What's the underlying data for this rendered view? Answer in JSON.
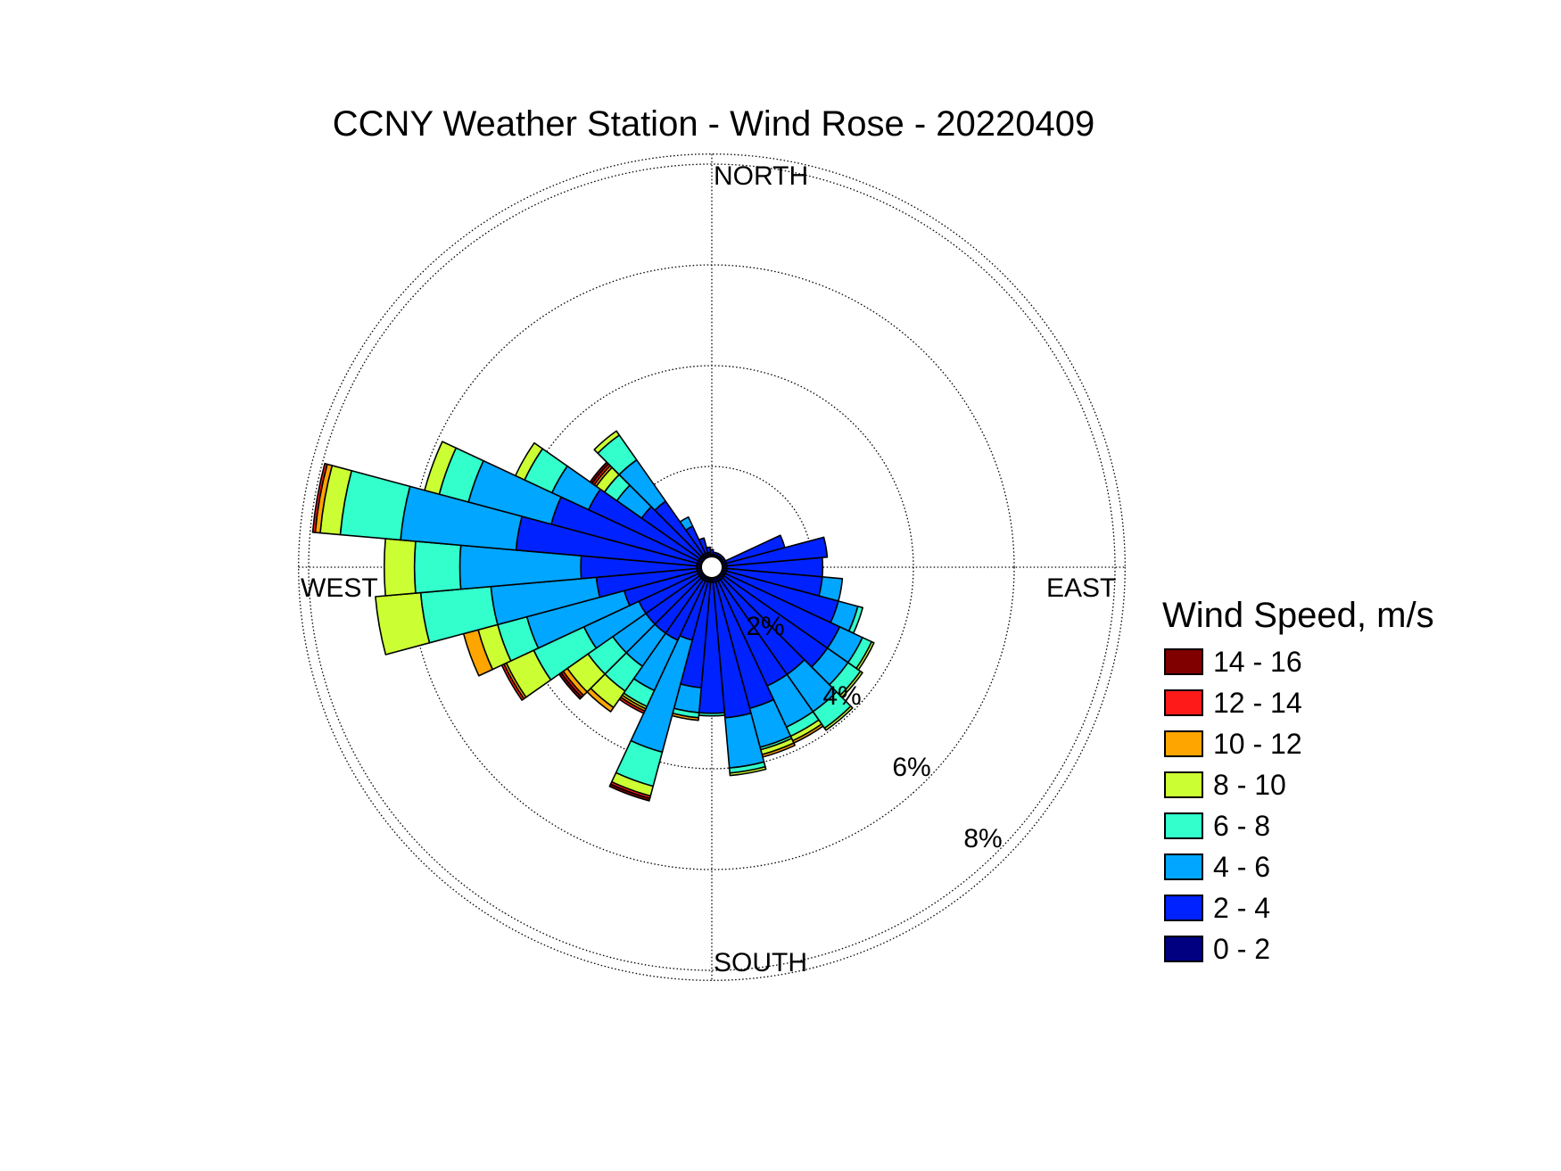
{
  "chart_data": {
    "type": "wind_rose",
    "title": "CCNY Weather Station - Wind Rose - 20220409",
    "directions": {
      "north": "NORTH",
      "east": "EAST",
      "south": "SOUTH",
      "west": "WEST"
    },
    "radial_axis": {
      "ticks": [
        2,
        4,
        6,
        8
      ],
      "tick_labels": [
        "2%",
        "4%",
        "6%",
        "8%"
      ],
      "max": 8.2,
      "grid": true
    },
    "legend": {
      "title": "Wind Speed, m/s",
      "placement": "right",
      "bins": [
        {
          "label": "14 - 16",
          "color": "#800000"
        },
        {
          "label": "12 - 14",
          "color": "#ff1a1a"
        },
        {
          "label": "10 - 12",
          "color": "#ffa500"
        },
        {
          "label": "8 - 10",
          "color": "#ccff33"
        },
        {
          "label": "6 - 8",
          "color": "#33ffcc"
        },
        {
          "label": "4 - 6",
          "color": "#00a6ff"
        },
        {
          "label": "2 - 4",
          "color": "#0022ff"
        },
        {
          "label": "0 - 2",
          "color": "#000080"
        }
      ]
    },
    "sector_width_deg": 10,
    "series": [
      {
        "direction_deg": 0,
        "cumulative_percent": [
          0.25,
          0.35,
          0.35,
          0.35,
          0.35,
          0.35,
          0.35,
          0.35
        ]
      },
      {
        "direction_deg": 10,
        "cumulative_percent": [
          0.25,
          0.3,
          0.3,
          0.3,
          0.3,
          0.3,
          0.3,
          0.3
        ]
      },
      {
        "direction_deg": 20,
        "cumulative_percent": [
          0.25,
          0.3,
          0.3,
          0.3,
          0.3,
          0.3,
          0.3,
          0.3
        ]
      },
      {
        "direction_deg": 30,
        "cumulative_percent": [
          0.25,
          0.3,
          0.3,
          0.3,
          0.3,
          0.3,
          0.3,
          0.3
        ]
      },
      {
        "direction_deg": 40,
        "cumulative_percent": [
          0.25,
          0.3,
          0.3,
          0.3,
          0.3,
          0.3,
          0.3,
          0.3
        ]
      },
      {
        "direction_deg": 50,
        "cumulative_percent": [
          0.25,
          0.3,
          0.3,
          0.3,
          0.3,
          0.3,
          0.3,
          0.3
        ]
      },
      {
        "direction_deg": 60,
        "cumulative_percent": [
          0.25,
          0.3,
          0.3,
          0.3,
          0.3,
          0.3,
          0.3,
          0.3
        ]
      },
      {
        "direction_deg": 70,
        "cumulative_percent": [
          0.3,
          1.5,
          1.5,
          1.5,
          1.5,
          1.5,
          1.5,
          1.5
        ]
      },
      {
        "direction_deg": 80,
        "cumulative_percent": [
          0.3,
          2.3,
          2.3,
          2.3,
          2.3,
          2.3,
          2.3,
          2.3
        ]
      },
      {
        "direction_deg": 90,
        "cumulative_percent": [
          0.3,
          2.2,
          2.2,
          2.2,
          2.2,
          2.2,
          2.2,
          2.2
        ]
      },
      {
        "direction_deg": 100,
        "cumulative_percent": [
          0.3,
          2.2,
          2.6,
          2.6,
          2.6,
          2.6,
          2.6,
          2.6
        ]
      },
      {
        "direction_deg": 110,
        "cumulative_percent": [
          0.3,
          2.6,
          3.0,
          3.1,
          3.1,
          3.1,
          3.1,
          3.1
        ]
      },
      {
        "direction_deg": 120,
        "cumulative_percent": [
          0.3,
          2.8,
          3.3,
          3.5,
          3.55,
          3.55,
          3.55,
          3.55
        ]
      },
      {
        "direction_deg": 130,
        "cumulative_percent": [
          0.3,
          2.8,
          3.3,
          3.6,
          3.65,
          3.65,
          3.65,
          3.65
        ]
      },
      {
        "direction_deg": 140,
        "cumulative_percent": [
          0.3,
          2.6,
          3.5,
          3.9,
          3.95,
          3.95,
          3.95,
          3.95
        ]
      },
      {
        "direction_deg": 150,
        "cumulative_percent": [
          0.3,
          2.6,
          3.5,
          3.7,
          3.8,
          3.85,
          3.85,
          3.85
        ]
      },
      {
        "direction_deg": 160,
        "cumulative_percent": [
          0.3,
          2.9,
          3.7,
          3.75,
          3.85,
          3.9,
          3.9,
          3.9
        ]
      },
      {
        "direction_deg": 170,
        "cumulative_percent": [
          0.3,
          3.0,
          4.0,
          4.1,
          4.15,
          4.15,
          4.15,
          4.15
        ]
      },
      {
        "direction_deg": 180,
        "cumulative_percent": [
          0.3,
          2.9,
          2.9,
          2.95,
          2.95,
          2.95,
          2.95,
          2.95
        ]
      },
      {
        "direction_deg": 190,
        "cumulative_percent": [
          0.3,
          2.4,
          2.9,
          3.0,
          3.0,
          3.05,
          3.05,
          3.05
        ]
      },
      {
        "direction_deg": 200,
        "cumulative_percent": [
          0.3,
          1.5,
          3.8,
          4.5,
          4.7,
          4.7,
          4.75,
          4.8
        ]
      },
      {
        "direction_deg": 210,
        "cumulative_percent": [
          0.3,
          1.6,
          2.7,
          3.05,
          3.1,
          3.15,
          3.2,
          3.2
        ]
      },
      {
        "direction_deg": 220,
        "cumulative_percent": [
          0.3,
          1.6,
          2.4,
          3.0,
          3.4,
          3.5,
          3.5,
          3.5
        ]
      },
      {
        "direction_deg": 230,
        "cumulative_percent": [
          0.3,
          1.6,
          2.4,
          3.0,
          3.5,
          3.6,
          3.65,
          3.7
        ]
      },
      {
        "direction_deg": 240,
        "cumulative_percent": [
          0.3,
          1.6,
          2.8,
          3.9,
          4.5,
          4.55,
          4.6,
          4.6
        ]
      },
      {
        "direction_deg": 250,
        "cumulative_percent": [
          0.3,
          1.8,
          3.8,
          4.4,
          4.8,
          5.1,
          5.1,
          5.1
        ]
      },
      {
        "direction_deg": 260,
        "cumulative_percent": [
          0.3,
          2.3,
          4.4,
          5.8,
          6.7,
          6.7,
          6.7,
          6.7
        ]
      },
      {
        "direction_deg": 270,
        "cumulative_percent": [
          0.3,
          2.6,
          5.0,
          5.9,
          6.5,
          6.5,
          6.5,
          6.5
        ]
      },
      {
        "direction_deg": 280,
        "cumulative_percent": [
          0.3,
          3.9,
          6.2,
          7.4,
          7.8,
          7.9,
          7.95,
          7.95
        ]
      },
      {
        "direction_deg": 290,
        "cumulative_percent": [
          0.3,
          3.3,
          5.0,
          5.6,
          5.9,
          5.9,
          5.9,
          5.9
        ]
      },
      {
        "direction_deg": 300,
        "cumulative_percent": [
          0.3,
          2.7,
          3.5,
          4.1,
          4.3,
          4.3,
          4.3,
          4.3
        ]
      },
      {
        "direction_deg": 310,
        "cumulative_percent": [
          0.3,
          1.7,
          2.3,
          2.6,
          2.8,
          2.85,
          2.9,
          2.95
        ]
      },
      {
        "direction_deg": 320,
        "cumulative_percent": [
          0.3,
          1.6,
          2.6,
          3.2,
          3.3,
          3.3,
          3.3,
          3.3
        ]
      },
      {
        "direction_deg": 330,
        "cumulative_percent": [
          0.3,
          0.9,
          1.1,
          1.1,
          1.1,
          1.1,
          1.1,
          1.1
        ]
      },
      {
        "direction_deg": 340,
        "cumulative_percent": [
          0.3,
          0.6,
          0.6,
          0.6,
          0.6,
          0.6,
          0.6,
          0.6
        ]
      },
      {
        "direction_deg": 350,
        "cumulative_percent": [
          0.3,
          0.4,
          0.4,
          0.4,
          0.4,
          0.4,
          0.4,
          0.4
        ]
      }
    ],
    "speed_bins_order": [
      "0 - 2",
      "2 - 4",
      "4 - 6",
      "6 - 8",
      "8 - 10",
      "10 - 12",
      "12 - 14",
      "14 - 16"
    ],
    "speed_bin_colors": [
      "#000080",
      "#0022ff",
      "#00a6ff",
      "#33ffcc",
      "#ccff33",
      "#ffa500",
      "#ff1a1a",
      "#800000"
    ]
  }
}
